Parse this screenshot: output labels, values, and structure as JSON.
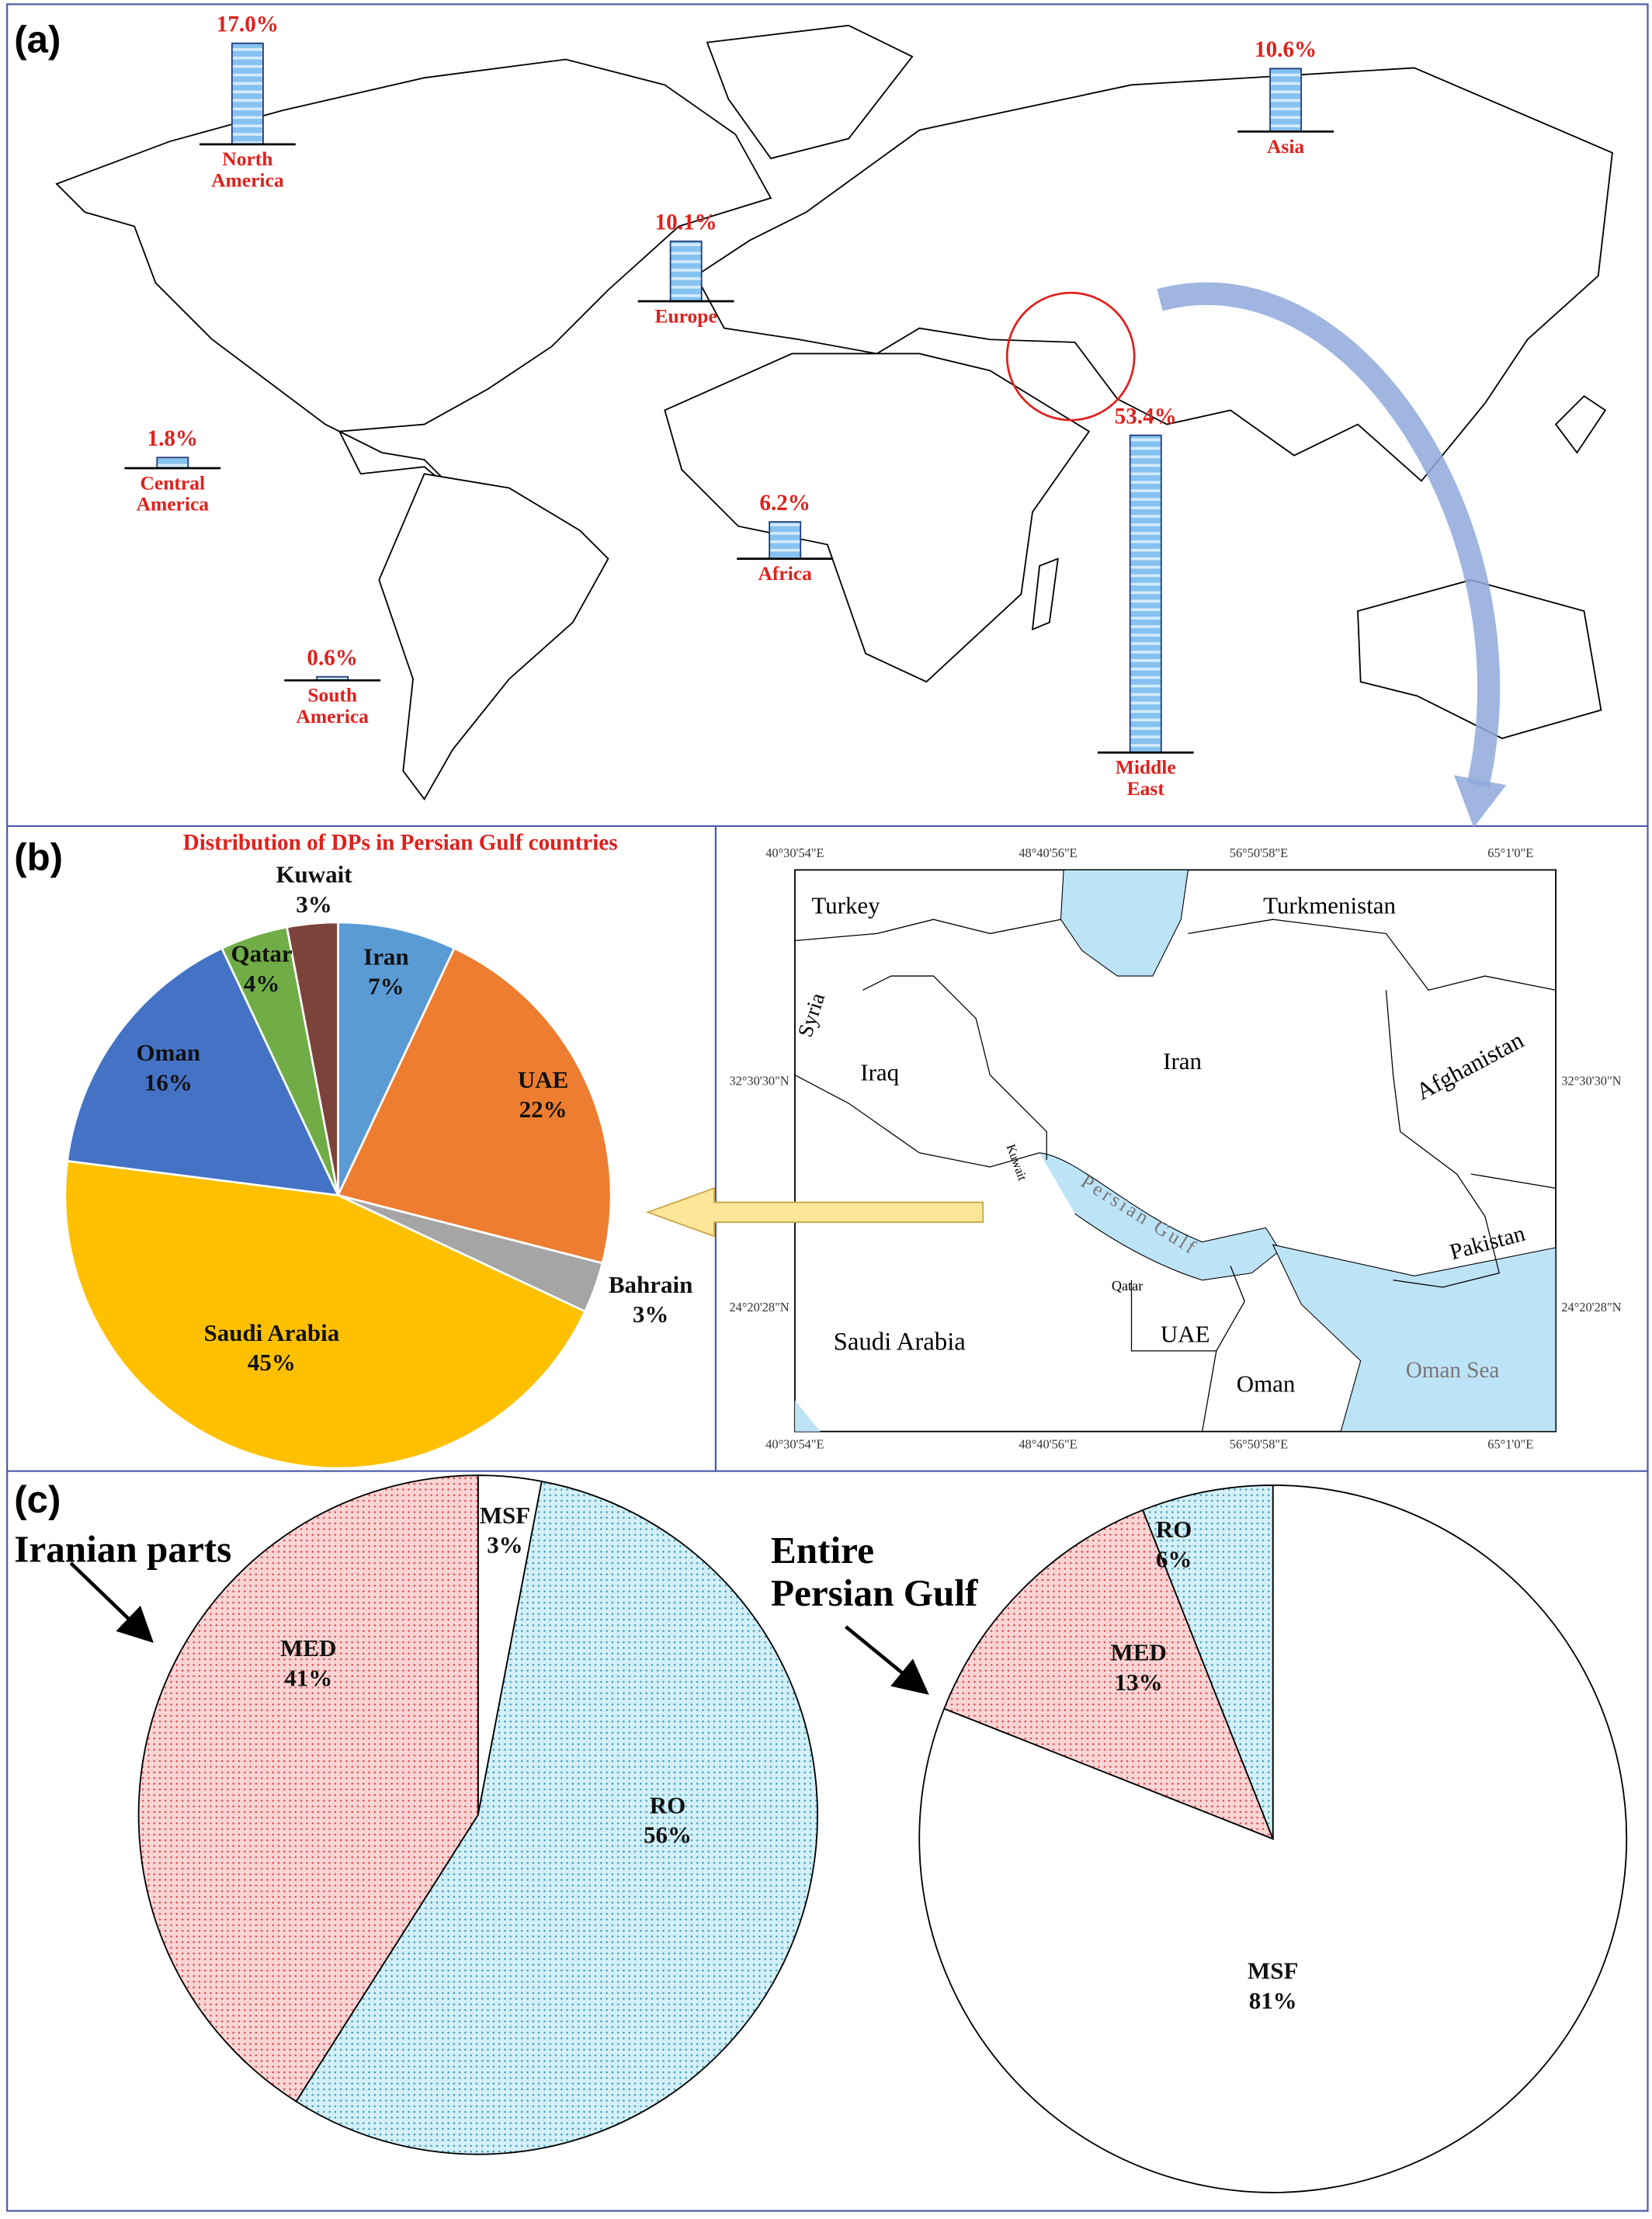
{
  "panel_labels": [
    "(a)",
    "(b)",
    "(c)"
  ],
  "chart_data": [
    {
      "type": "bar",
      "categories": [
        "North America",
        "Asia",
        "Europe",
        "Central America",
        "Africa",
        "South America",
        "Middle East"
      ],
      "values": [
        17.0,
        10.6,
        10.1,
        1.8,
        6.2,
        0.6,
        53.4
      ],
      "value_labels": [
        "17.0%",
        "10.6%",
        "10.1%",
        "1.8%",
        "6.2%",
        "0.6%",
        "53.4%"
      ],
      "color": "#86c2f0"
    },
    {
      "type": "pie",
      "title": "Distribution of DPs in Persian Gulf countries",
      "categories": [
        "Iran",
        "UAE",
        "Bahrain",
        "Saudi Arabia",
        "Oman",
        "Qatar",
        "Kuwait"
      ],
      "values": [
        7,
        22,
        3,
        45,
        16,
        4,
        3
      ],
      "value_labels": [
        "7%",
        "22%",
        "3%",
        "45%",
        "16%",
        "4%",
        "3%"
      ],
      "colors": [
        "#5b9bd5",
        "#ed7d31",
        "#a5a5a5",
        "#ffc000",
        "#4472c4",
        "#70ad47",
        "#7b4339"
      ]
    },
    {
      "type": "pie",
      "title": "Iranian parts",
      "categories": [
        "MSF",
        "RO",
        "MED"
      ],
      "values": [
        3,
        56,
        41
      ],
      "value_labels": [
        "3%",
        "56%",
        "41%"
      ],
      "colors": [
        "#ffffff",
        "#d4f0f7",
        "#fbd5d5"
      ]
    },
    {
      "type": "pie",
      "title": "Entire Persian Gulf",
      "categories": [
        "MSF",
        "MED",
        "RO"
      ],
      "values": [
        81,
        13,
        6
      ],
      "value_labels": [
        "81%",
        "13%",
        "6%"
      ],
      "colors": [
        "#ffffff",
        "#fbd5d5",
        "#d4f0f7"
      ]
    }
  ],
  "map": {
    "labels": [
      "Turkey",
      "Turkmenistan",
      "Syria",
      "Iraq",
      "Iran",
      "Afghanistan",
      "Pakistan",
      "Kuwait",
      "Persian Gulf",
      "Qatar",
      "UAE",
      "Saudi Arabia",
      "Oman",
      "Oman Sea"
    ],
    "longitudes": [
      "40°30'54\"E",
      "48°40'56\"E",
      "56°50'58\"E",
      "65°1'0\"E"
    ],
    "latitudes": [
      "32°30'30\"N",
      "24°20'28\"N"
    ]
  }
}
